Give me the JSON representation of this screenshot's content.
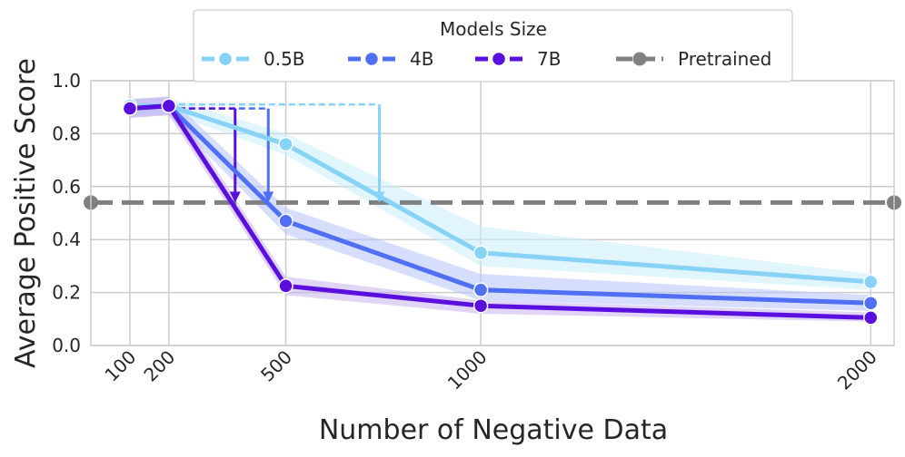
{
  "chart_data": {
    "type": "line",
    "xlabel": "Number of Negative Data",
    "ylabel": "Average Positive Score",
    "x": [
      100,
      200,
      500,
      1000,
      2000
    ],
    "xticks": [
      "100",
      "200",
      "500",
      "1000",
      "2000"
    ],
    "xlim": [
      0,
      2060
    ],
    "ylim": [
      0,
      1.0
    ],
    "yticks": [
      "0.0",
      "0.2",
      "0.4",
      "0.6",
      "0.8",
      "1.0"
    ],
    "grid": true,
    "legend": {
      "title": "Models Size",
      "placement": "top-center",
      "entries": [
        "0.5B",
        "4B",
        "7B",
        "Pretrained"
      ]
    },
    "series": [
      {
        "name": "0.5B",
        "color": "#87d3f8",
        "band_color": "#c9ecfc",
        "values": [
          0.905,
          0.905,
          0.76,
          0.35,
          0.24
        ],
        "lower": [
          0.87,
          0.88,
          0.72,
          0.3,
          0.21
        ],
        "upper": [
          0.93,
          0.935,
          0.8,
          0.45,
          0.27
        ]
      },
      {
        "name": "4B",
        "color": "#4f6ff5",
        "band_color": "#b6c3fb",
        "values": [
          0.895,
          0.905,
          0.47,
          0.21,
          0.16
        ],
        "lower": [
          0.86,
          0.87,
          0.42,
          0.17,
          0.13
        ],
        "upper": [
          0.93,
          0.94,
          0.52,
          0.27,
          0.19
        ]
      },
      {
        "name": "7B",
        "color": "#5a0fdf",
        "band_color": "#c7b0f1",
        "values": [
          0.895,
          0.905,
          0.225,
          0.15,
          0.105
        ],
        "lower": [
          0.86,
          0.87,
          0.19,
          0.12,
          0.09
        ],
        "upper": [
          0.93,
          0.94,
          0.26,
          0.17,
          0.125
        ]
      }
    ],
    "baseline": {
      "name": "Pretrained",
      "value": 0.54,
      "color": "#808080"
    },
    "annotations": [
      {
        "series": "0.5B",
        "from": [
          200,
          0.91
        ],
        "to": [
          740,
          0.54
        ],
        "color": "#87d3f8"
      },
      {
        "series": "4B",
        "from": [
          200,
          0.895
        ],
        "to": [
          455,
          0.54
        ],
        "color": "#4f6ff5"
      },
      {
        "series": "7B",
        "from": [
          200,
          0.895
        ],
        "to": [
          370,
          0.54
        ],
        "color": "#5a0fdf"
      }
    ]
  }
}
